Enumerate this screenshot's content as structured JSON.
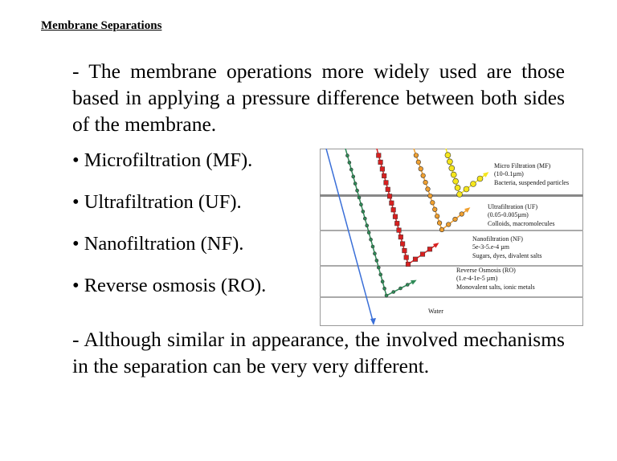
{
  "title": "Membrane Separations",
  "intro": "- The membrane operations more widely used are those based in applying a pressure difference between both sides of the membrane.",
  "bullets": [
    "• Microfiltration (MF).",
    "• Ultrafiltration (UF).",
    "• Nanofiltration (NF).",
    "• Reverse osmosis (RO)."
  ],
  "closing": "- Although similar in appearance, the involved mechanisms in the separation can be very very different.",
  "diagram": {
    "layers": [
      {
        "name": "Micro Filtration (MF)",
        "range": "(10-0.1µm)",
        "retains": "Bacteria, suspended particles",
        "color": "#f5e61c"
      },
      {
        "name": "Ultrafiltration (UF)",
        "range": "(0.05-0.005µm)",
        "retains": "Colloids, macromolecules",
        "color": "#f0a030"
      },
      {
        "name": "Nanofiltration (NF)",
        "range": "5e-3-5.e-4 µm",
        "retains": "Sugars, dyes, divalent salts",
        "color": "#d82020"
      },
      {
        "name": "Reverse Osmosis (RO)",
        "range": "(1.e-4-1e-5 µm)",
        "retains": "Monovalent salts, ionic metals",
        "color": "#2e8b57"
      }
    ],
    "water_label": "Water",
    "water_color": "#3a6fd8"
  }
}
